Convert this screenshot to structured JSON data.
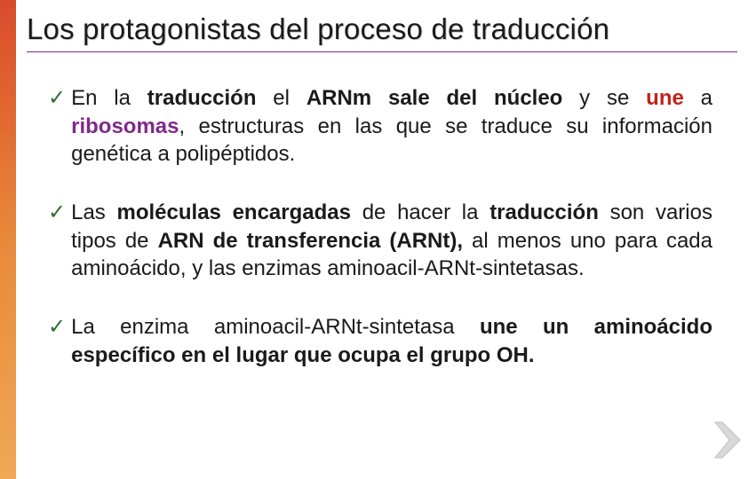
{
  "colors": {
    "title_border": "#7f2a8a",
    "check": "#2f6f2f",
    "text": "#1a1a1a",
    "accent_purple": "#7f2a8a",
    "accent_red": "#c02418",
    "arrow_fill": "#d9d9d9",
    "arrow_stroke": "#bfbfbf",
    "sidebar_top": "#d94b2b",
    "sidebar_mid": "#e8893a",
    "sidebar_bot": "#f0a855"
  },
  "title": "Los protagonistas del proceso de traducción",
  "bullets": [
    {
      "segments": [
        {
          "t": "En la ",
          "b": false
        },
        {
          "t": "traducción",
          "b": true
        },
        {
          "t": " el ",
          "b": false
        },
        {
          "t": "ARNm sale del núcleo",
          "b": true
        },
        {
          "t": " y se ",
          "b": false
        },
        {
          "t": "une",
          "b": true,
          "color": "#c02418"
        },
        {
          "t": " a ",
          "b": false
        },
        {
          "t": "ribosomas",
          "b": true,
          "color": "#7f2a8a"
        },
        {
          "t": ", estructuras en las que se traduce su información genética a polipéptidos.",
          "b": false
        }
      ]
    },
    {
      "segments": [
        {
          "t": "Las ",
          "b": false
        },
        {
          "t": "moléculas encargadas",
          "b": true
        },
        {
          "t": " de hacer la ",
          "b": false
        },
        {
          "t": "traducción",
          "b": true
        },
        {
          "t": " son varios tipos de ",
          "b": false
        },
        {
          "t": "ARN de transferencia (ARNt),",
          "b": true
        },
        {
          "t": " al menos uno para cada aminoácido, y las enzimas aminoacil-ARNt-sintetasas.",
          "b": false
        }
      ]
    },
    {
      "segments": [
        {
          "t": "La enzima aminoacil-ARNt-sintetasa ",
          "b": false
        },
        {
          "t": "une un aminoácido específico en el lugar que ocupa el grupo OH.",
          "b": true
        }
      ]
    }
  ]
}
